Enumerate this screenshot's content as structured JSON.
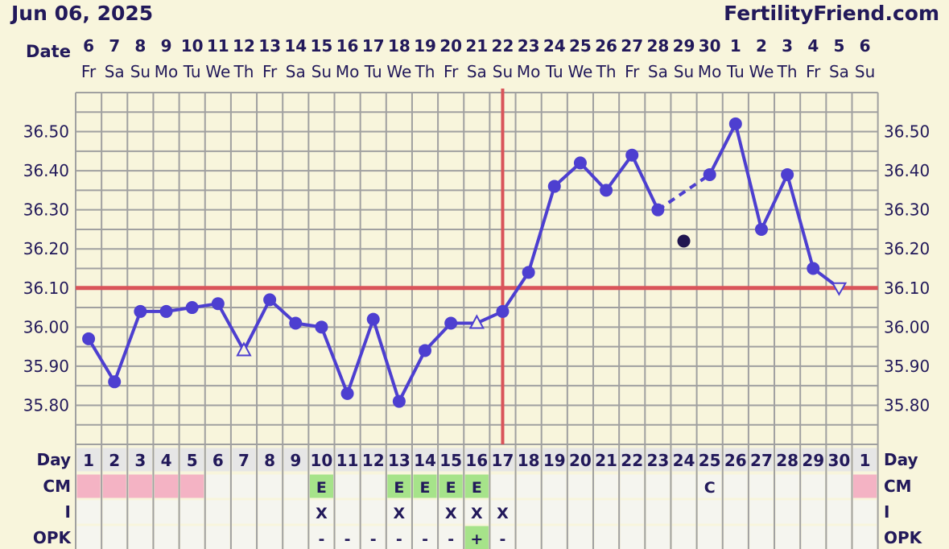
{
  "header": {
    "date": "Jun 06, 2025",
    "brand": "FertilityFriend.com"
  },
  "colors": {
    "background": "#f8f5dc",
    "temp_line": "#4d3fd0",
    "coverline": "#d9545a",
    "ovulation_line": "#d9545a",
    "menses": "#f4b3c4",
    "fertile_cm": "#a6e38a",
    "text": "#22195a",
    "grid": "#a0a0a0"
  },
  "chart_data": {
    "type": "line",
    "ylim": [
      35.7,
      36.6
    ],
    "y_ticks": [
      "35.80",
      "35.90",
      "36.00",
      "36.10",
      "36.20",
      "36.30",
      "36.40",
      "36.50"
    ],
    "date_label": "Date",
    "dates": [
      "6",
      "7",
      "8",
      "9",
      "10",
      "11",
      "12",
      "13",
      "14",
      "15",
      "16",
      "17",
      "18",
      "19",
      "20",
      "21",
      "22",
      "23",
      "24",
      "25",
      "26",
      "27",
      "28",
      "29",
      "30",
      "1",
      "2",
      "3",
      "4",
      "5",
      "6"
    ],
    "weekdays": [
      "Fr",
      "Sa",
      "Su",
      "Mo",
      "Tu",
      "We",
      "Th",
      "Fr",
      "Sa",
      "Su",
      "Mo",
      "Tu",
      "We",
      "Th",
      "Fr",
      "Sa",
      "Su",
      "Mo",
      "Tu",
      "We",
      "Th",
      "Fr",
      "Sa",
      "Su",
      "Mo",
      "Tu",
      "We",
      "Th",
      "Fr",
      "Sa",
      "Su"
    ],
    "days": [
      "1",
      "2",
      "3",
      "4",
      "5",
      "6",
      "7",
      "8",
      "9",
      "10",
      "11",
      "12",
      "13",
      "14",
      "15",
      "16",
      "17",
      "18",
      "19",
      "20",
      "21",
      "22",
      "23",
      "24",
      "25",
      "26",
      "27",
      "28",
      "29",
      "30",
      "1"
    ],
    "temperatures": [
      35.97,
      35.86,
      36.04,
      36.04,
      36.05,
      36.06,
      35.94,
      36.07,
      36.01,
      36.0,
      35.83,
      36.02,
      35.81,
      35.94,
      36.01,
      36.01,
      36.04,
      36.14,
      36.36,
      36.42,
      36.35,
      36.44,
      36.3,
      36.22,
      36.39,
      36.52,
      36.25,
      36.39,
      36.15,
      36.1,
      null
    ],
    "markers": [
      "dot",
      "dot",
      "dot",
      "dot",
      "dot",
      "dot",
      "triangle-open",
      "dot",
      "dot",
      "dot",
      "dot",
      "dot",
      "dot",
      "dot",
      "dot",
      "triangle-open",
      "dot",
      "dot",
      "dot",
      "dot",
      "dot",
      "dot",
      "dot",
      "discarded-dot",
      "dot",
      "dot",
      "dot",
      "dot",
      "dot",
      "triangle-down-open",
      null
    ],
    "dashed_segment": {
      "from_day": 23,
      "to_day": 25
    },
    "coverline": 36.1,
    "ovulation_day": 17,
    "rows": {
      "labels": {
        "day": "Day",
        "cm": "CM",
        "i": "I",
        "opk": "OPK"
      },
      "menses_days": [
        1,
        2,
        3,
        4,
        5,
        31
      ],
      "cm": [
        "",
        "",
        "",
        "",
        "",
        "",
        "",
        "",
        "",
        "E",
        "",
        "",
        "E",
        "E",
        "E",
        "E",
        "",
        "",
        "",
        "",
        "",
        "",
        "",
        "",
        "C",
        "",
        "",
        "",
        "",
        "",
        ""
      ],
      "cm_fertile": [
        10,
        13,
        14,
        15,
        16
      ],
      "i": [
        "",
        "",
        "",
        "",
        "",
        "",
        "",
        "",
        "",
        "X",
        "",
        "",
        "X",
        "",
        "X",
        "X",
        "X",
        "",
        "",
        "",
        "",
        "",
        "",
        "",
        "",
        "",
        "",
        "",
        "",
        "",
        ""
      ],
      "opk": [
        "",
        "",
        "",
        "",
        "",
        "",
        "",
        "",
        "",
        "-",
        "-",
        "-",
        "-",
        "-",
        "-",
        "+",
        "-",
        "",
        "",
        "",
        "",
        "",
        "",
        "",
        "",
        "",
        "",
        "",
        "",
        "",
        ""
      ],
      "opk_positive": [
        16
      ]
    }
  }
}
